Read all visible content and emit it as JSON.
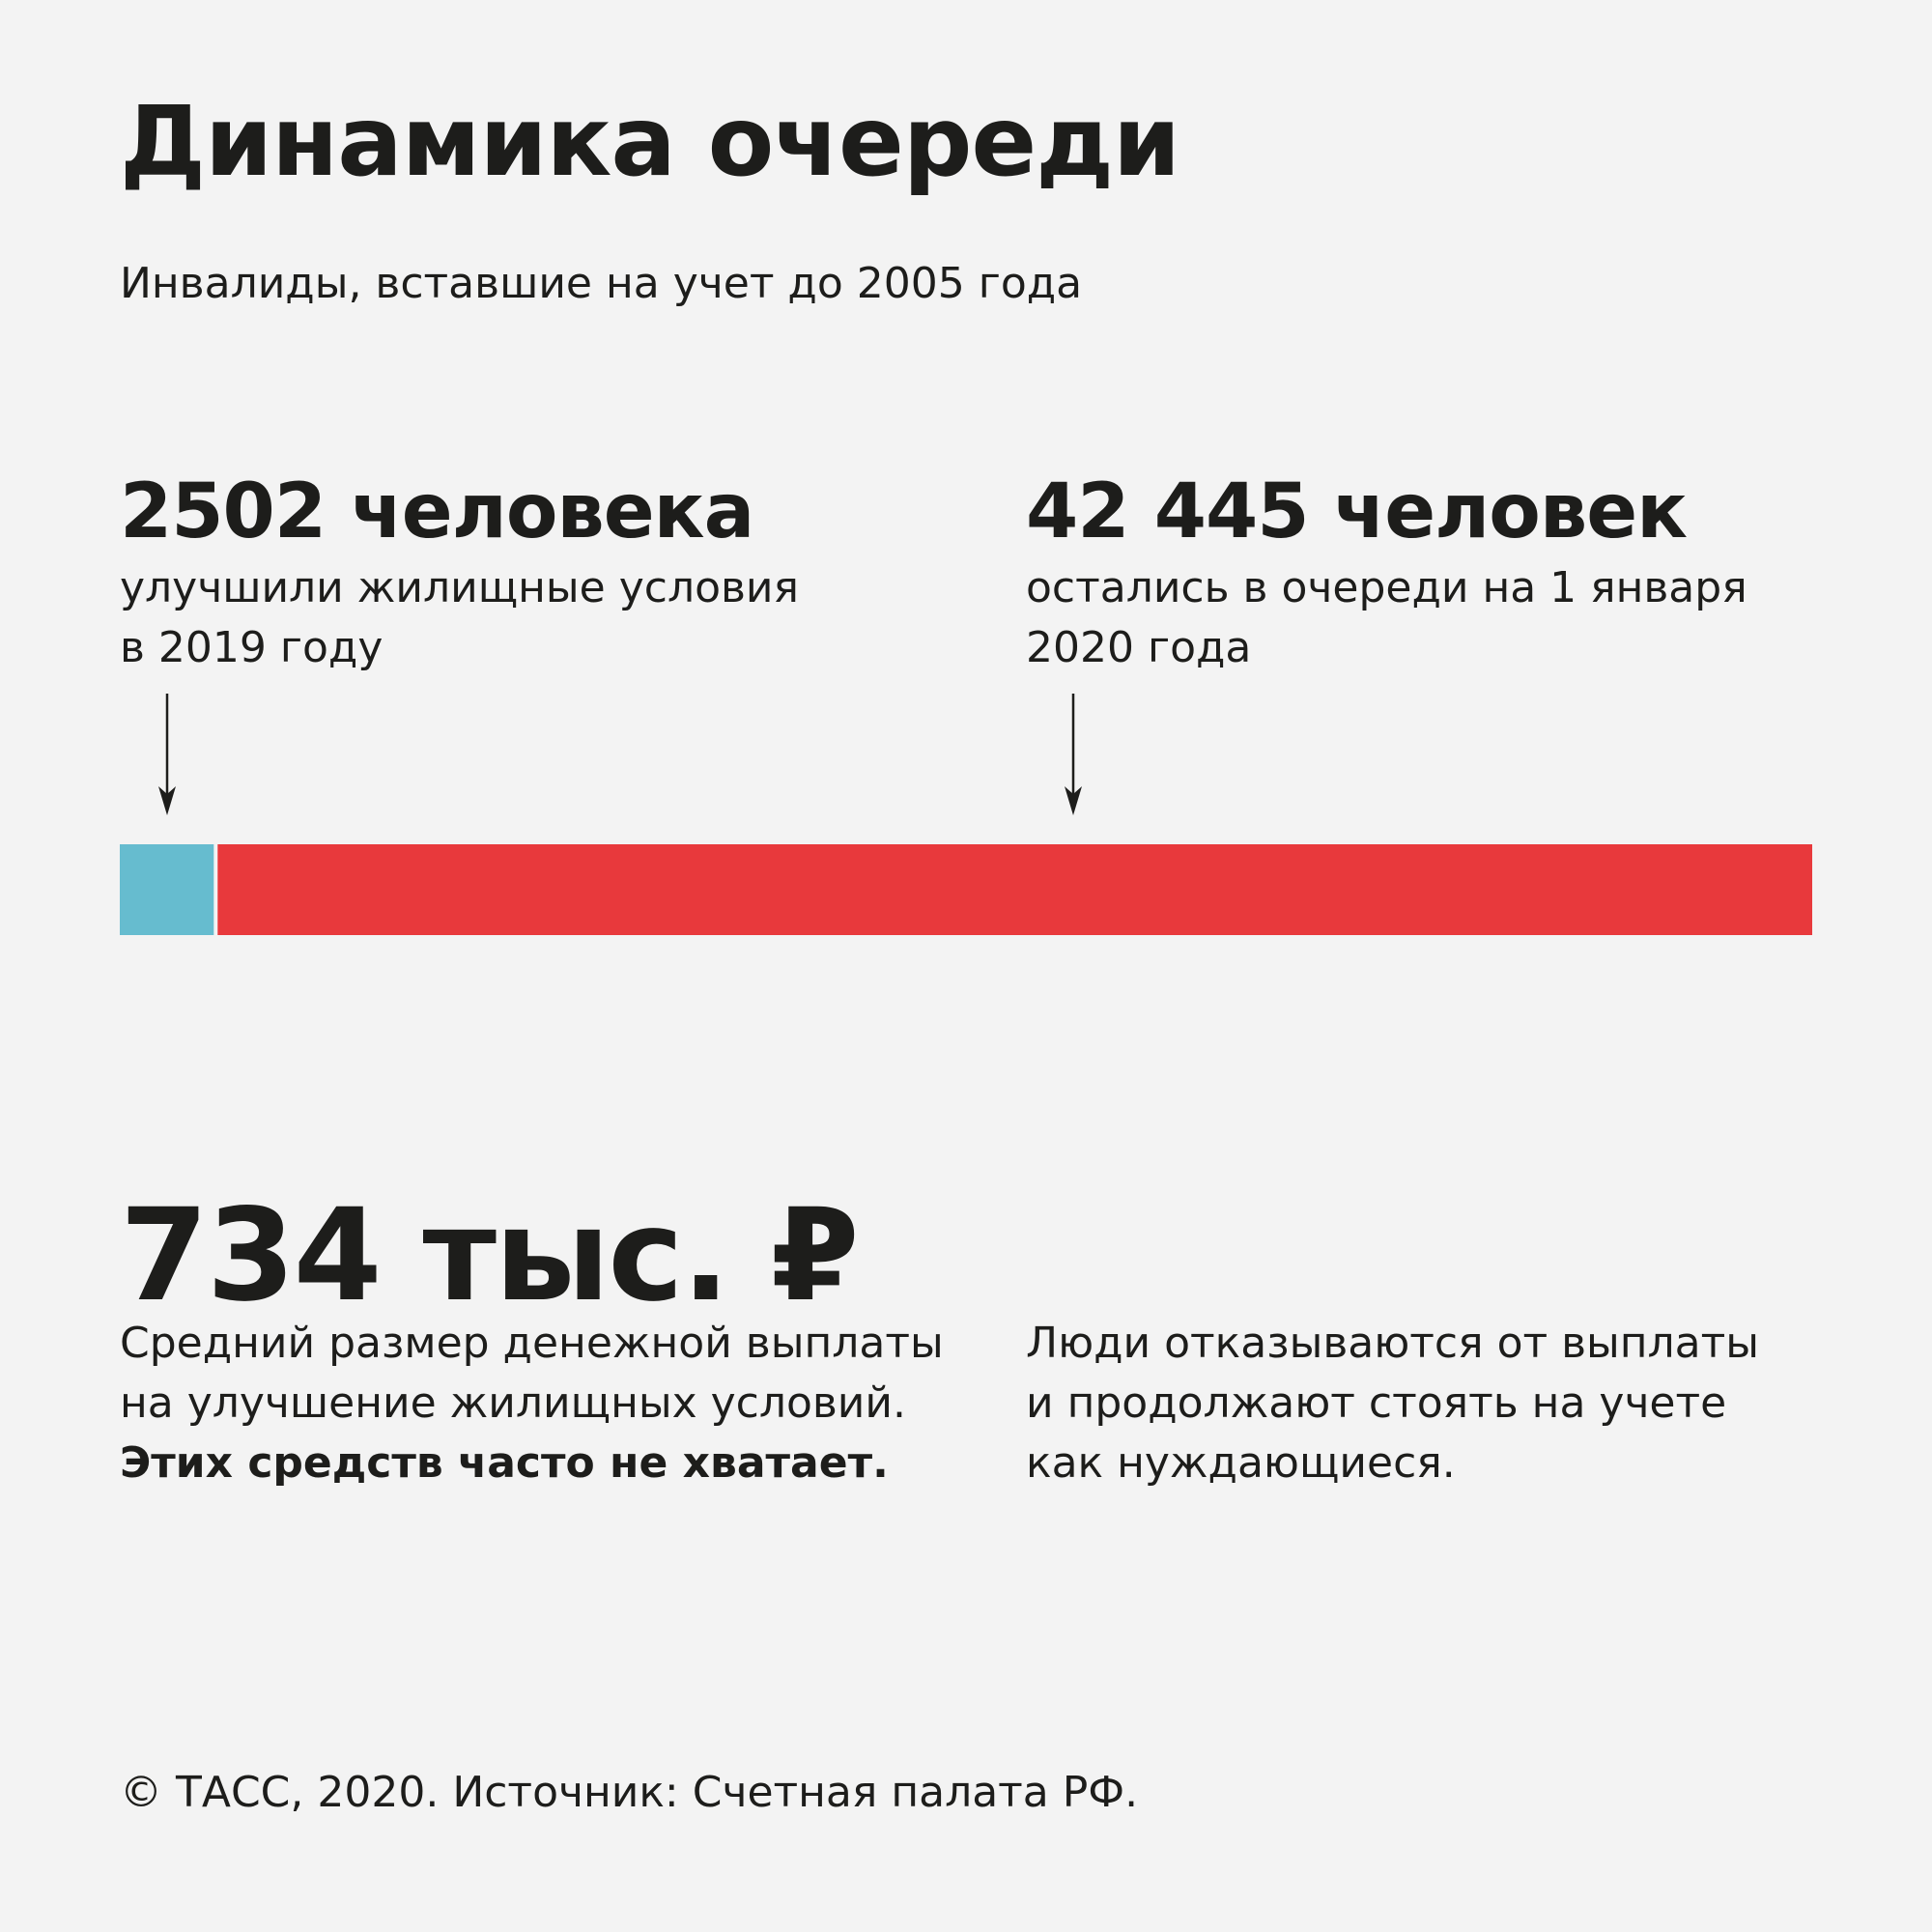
{
  "header": {
    "title": "Динамика очереди",
    "subtitle": "Инвалиды, вставшие на учет до 2005 года"
  },
  "stats": {
    "left": {
      "value": "2502 человека",
      "description": "улучшили жилищные условия\nв 2019 году"
    },
    "right": {
      "value": "42 445 человек",
      "description": "остались в очереди на 1 января\n2020 года"
    }
  },
  "chart_data": {
    "type": "bar",
    "orientation": "horizontal",
    "stacked": true,
    "series": [
      {
        "name": "улучшили жилищные условия в 2019 году",
        "value": 2502,
        "color": "#66bccf"
      },
      {
        "name": "остались в очереди на 1 января 2020 года",
        "value": 42445,
        "color": "#e8393c"
      }
    ],
    "total": 44947,
    "grid": false,
    "legend": "none"
  },
  "payment": {
    "value": "734 тыс. ₽",
    "description_lines": [
      "Средний размер денежной выплаты",
      "на улучшение жилищных условий."
    ],
    "emphasis": "Этих средств часто не хватает.",
    "note_lines": [
      "Люди отказываются от выплаты",
      "и продолжают стоять на учете",
      "как нуждающиеся."
    ]
  },
  "footer": {
    "source": "© ТАСС, 2020. Источник: Счетная палата РФ."
  },
  "icons": {
    "left_arrow": "arrow-down-icon",
    "right_arrow": "arrow-down-icon"
  }
}
